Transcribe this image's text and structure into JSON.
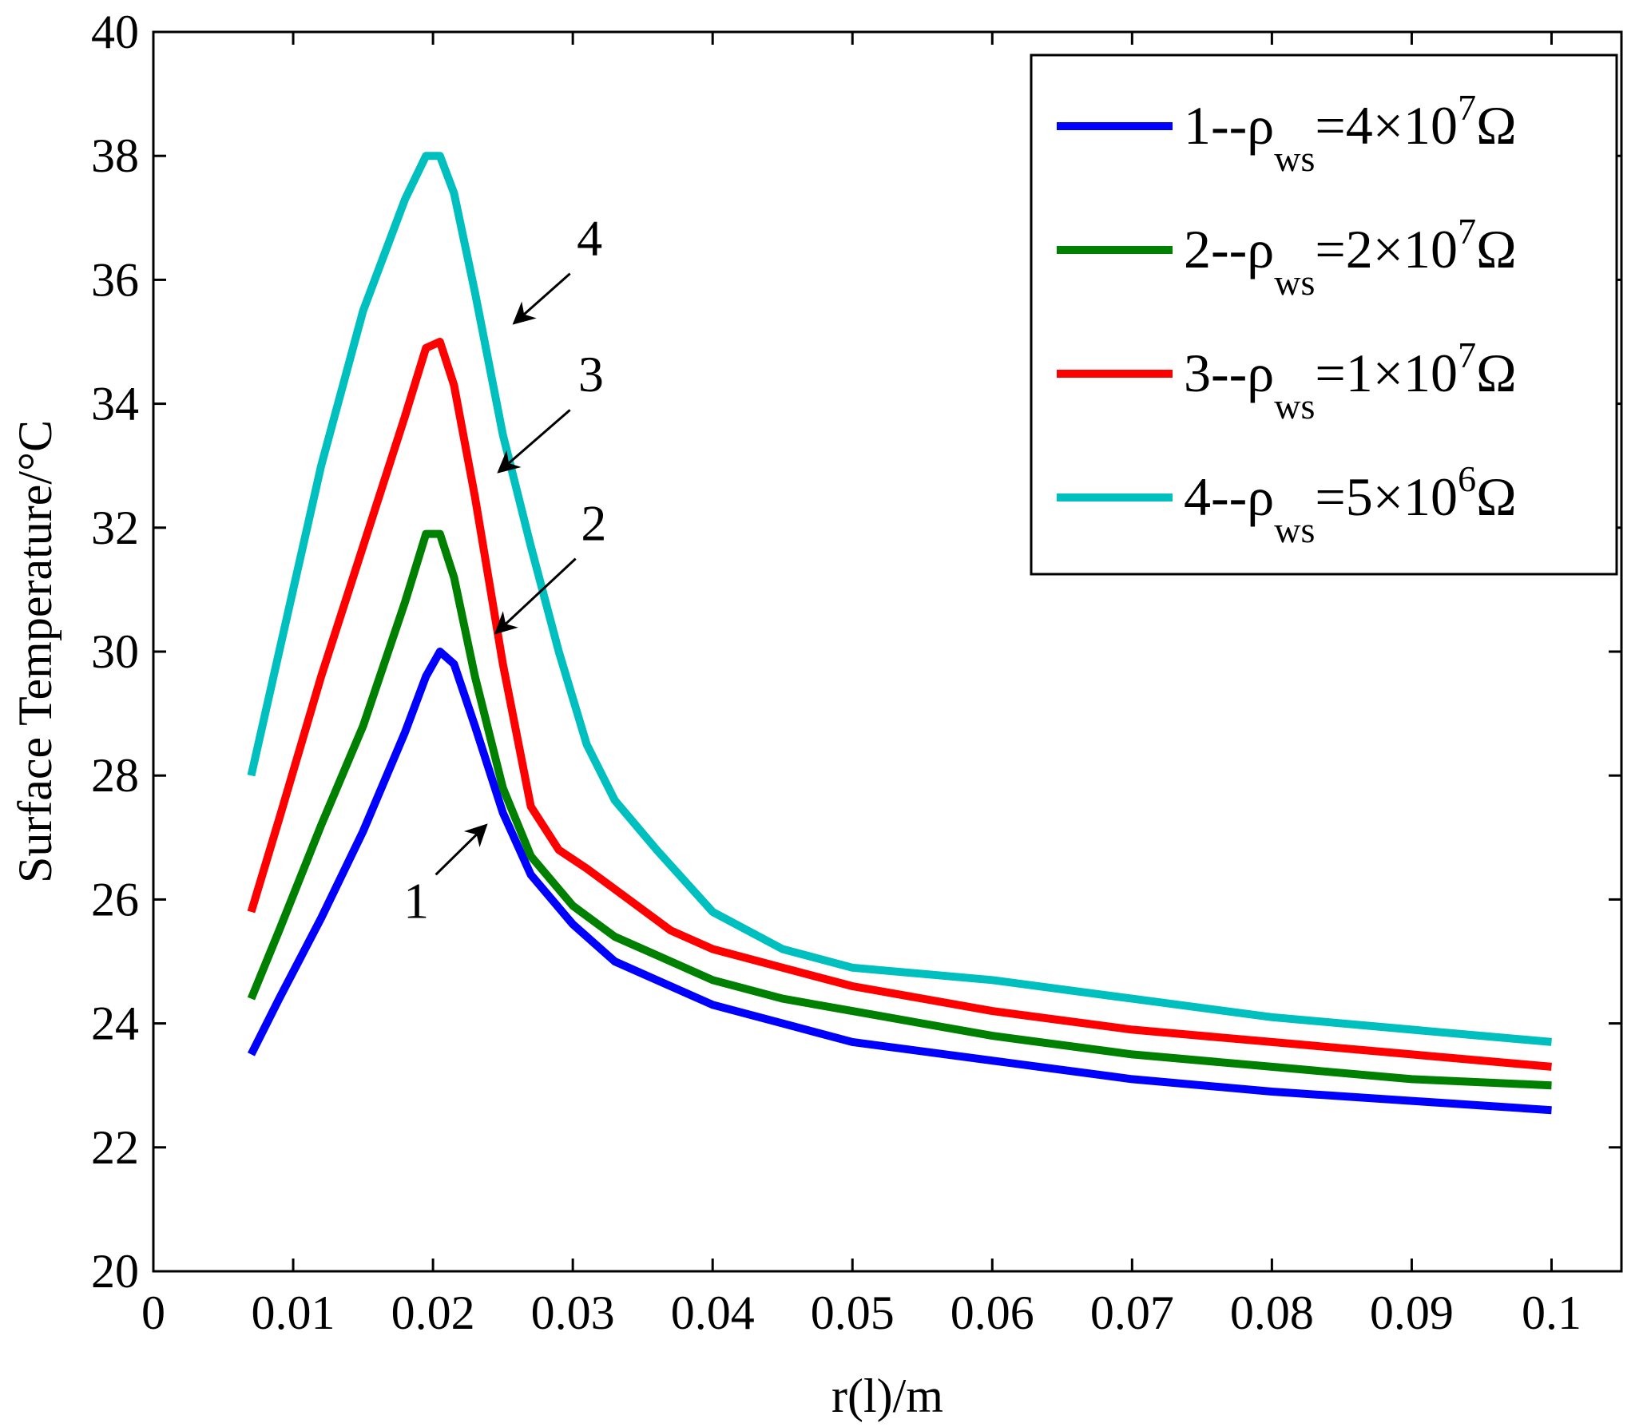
{
  "chart_data": {
    "type": "line",
    "xlabel": "r(l)/m",
    "ylabel": "Surface Temperature/°C",
    "xlim": [
      0,
      0.105
    ],
    "ylim": [
      20,
      40
    ],
    "xticks": [
      0,
      0.01,
      0.02,
      0.03,
      0.04,
      0.05,
      0.06,
      0.07,
      0.08,
      0.09,
      0.1
    ],
    "xtick_labels": [
      "0",
      "0.01",
      "0.02",
      "0.03",
      "0.04",
      "0.05",
      "0.06",
      "0.07",
      "0.08",
      "0.09",
      "0.1"
    ],
    "yticks": [
      20,
      22,
      24,
      26,
      28,
      30,
      32,
      34,
      36,
      38,
      40
    ],
    "ytick_labels": [
      "20",
      "22",
      "24",
      "26",
      "28",
      "30",
      "32",
      "34",
      "36",
      "38",
      "40"
    ],
    "grid": false,
    "legend_position": "top-right",
    "series": [
      {
        "name": "1--ρws=4×10^7Ω",
        "legend": {
          "prefix": "1--ρ",
          "sub": "ws",
          "mid": "=4×10",
          "sup": "7",
          "suffix": "Ω"
        },
        "color": "#0000ff",
        "x": [
          0.007,
          0.009,
          0.012,
          0.015,
          0.018,
          0.0195,
          0.0205,
          0.0215,
          0.023,
          0.025,
          0.027,
          0.03,
          0.033,
          0.036,
          0.04,
          0.045,
          0.05,
          0.06,
          0.07,
          0.08,
          0.09,
          0.1
        ],
        "y": [
          23.5,
          24.4,
          25.7,
          27.1,
          28.7,
          29.6,
          30.0,
          29.8,
          28.8,
          27.4,
          26.4,
          25.6,
          25.0,
          24.7,
          24.3,
          24.0,
          23.7,
          23.4,
          23.1,
          22.9,
          22.75,
          22.6
        ]
      },
      {
        "name": "2--ρws=2×10^7Ω",
        "legend": {
          "prefix": "2--ρ",
          "sub": "ws",
          "mid": "=2×10",
          "sup": "7",
          "suffix": "Ω"
        },
        "color": "#008000",
        "x": [
          0.007,
          0.009,
          0.012,
          0.015,
          0.018,
          0.0195,
          0.0205,
          0.0215,
          0.023,
          0.025,
          0.027,
          0.03,
          0.033,
          0.036,
          0.04,
          0.045,
          0.05,
          0.06,
          0.07,
          0.08,
          0.09,
          0.1
        ],
        "y": [
          24.4,
          25.5,
          27.2,
          28.8,
          30.8,
          31.9,
          31.9,
          31.2,
          29.6,
          27.8,
          26.7,
          25.9,
          25.4,
          25.1,
          24.7,
          24.4,
          24.2,
          23.8,
          23.5,
          23.3,
          23.1,
          23.0
        ]
      },
      {
        "name": "3--ρws=1×10^7Ω",
        "legend": {
          "prefix": "3--ρ",
          "sub": "ws",
          "mid": "=1×10",
          "sup": "7",
          "suffix": "Ω"
        },
        "color": "#ff0000",
        "x": [
          0.007,
          0.009,
          0.012,
          0.015,
          0.018,
          0.0195,
          0.0205,
          0.0215,
          0.023,
          0.025,
          0.027,
          0.029,
          0.031,
          0.034,
          0.037,
          0.04,
          0.045,
          0.05,
          0.06,
          0.07,
          0.08,
          0.09,
          0.1
        ],
        "y": [
          25.8,
          27.3,
          29.6,
          31.7,
          33.8,
          34.9,
          35.0,
          34.3,
          32.5,
          29.8,
          27.5,
          26.8,
          26.5,
          26.0,
          25.5,
          25.2,
          24.9,
          24.6,
          24.2,
          23.9,
          23.7,
          23.5,
          23.3
        ]
      },
      {
        "name": "4--ρws=5×10^6Ω",
        "legend": {
          "prefix": "4--ρ",
          "sub": "ws",
          "mid": "=5×10",
          "sup": "6",
          "suffix": "Ω"
        },
        "color": "#00bfbf",
        "x": [
          0.007,
          0.009,
          0.012,
          0.015,
          0.018,
          0.0195,
          0.0205,
          0.0215,
          0.023,
          0.025,
          0.027,
          0.029,
          0.031,
          0.033,
          0.036,
          0.04,
          0.045,
          0.05,
          0.06,
          0.07,
          0.08,
          0.09,
          0.1
        ],
        "y": [
          28.0,
          30.0,
          33.0,
          35.5,
          37.3,
          38.0,
          38.0,
          37.4,
          35.8,
          33.5,
          31.7,
          30.0,
          28.5,
          27.6,
          26.8,
          25.8,
          25.2,
          24.9,
          24.7,
          24.4,
          24.1,
          23.9,
          23.7
        ]
      }
    ],
    "annotations": [
      {
        "label": "1",
        "series": 0,
        "text_at": [
          0.0188,
          25.7
        ],
        "arrow_from": [
          0.0202,
          26.4
        ],
        "arrow_to": [
          0.0238,
          27.2
        ]
      },
      {
        "label": "2",
        "series": 1,
        "text_at": [
          0.0315,
          31.8
        ],
        "arrow_from": [
          0.0302,
          31.5
        ],
        "arrow_to": [
          0.0245,
          30.3
        ]
      },
      {
        "label": "3",
        "series": 2,
        "text_at": [
          0.0313,
          34.2
        ],
        "arrow_from": [
          0.0298,
          33.9
        ],
        "arrow_to": [
          0.0247,
          32.9
        ]
      },
      {
        "label": "4",
        "series": 3,
        "text_at": [
          0.0312,
          36.4
        ],
        "arrow_from": [
          0.0298,
          36.1
        ],
        "arrow_to": [
          0.0258,
          35.3
        ]
      }
    ]
  }
}
